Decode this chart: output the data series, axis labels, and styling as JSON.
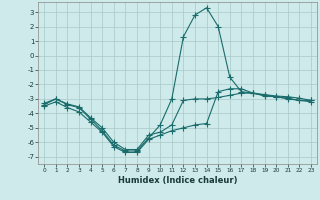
{
  "xlabel": "Humidex (Indice chaleur)",
  "background_color": "#ceeaea",
  "grid_color": "#aac8c8",
  "line_color": "#1a6b6b",
  "xlim": [
    -0.5,
    23.5
  ],
  "ylim": [
    -7.5,
    3.7
  ],
  "xticks": [
    0,
    1,
    2,
    3,
    4,
    5,
    6,
    7,
    8,
    9,
    10,
    11,
    12,
    13,
    14,
    15,
    16,
    17,
    18,
    19,
    20,
    21,
    22,
    23
  ],
  "yticks": [
    -7,
    -6,
    -5,
    -4,
    -3,
    -2,
    -1,
    0,
    1,
    2,
    3
  ],
  "lines": [
    {
      "x": [
        0,
        1,
        2,
        3,
        4,
        5,
        6,
        7,
        8,
        9,
        10,
        11,
        12,
        13,
        14,
        15,
        16,
        17,
        18,
        19,
        20,
        21,
        22,
        23
      ],
      "y": [
        -3.3,
        -3.0,
        -3.4,
        -3.6,
        -4.4,
        -5.2,
        -6.2,
        -6.6,
        -6.6,
        -5.7,
        -4.8,
        -3.0,
        1.3,
        2.8,
        3.3,
        2.0,
        -1.5,
        -2.5,
        -2.6,
        -2.8,
        -2.85,
        -3.0,
        -3.1,
        -3.1
      ]
    },
    {
      "x": [
        0,
        1,
        2,
        3,
        4,
        5,
        6,
        7,
        8,
        9,
        10,
        11,
        12,
        13,
        14,
        15,
        16,
        17,
        18,
        19,
        20,
        21,
        22,
        23
      ],
      "y": [
        -3.4,
        -3.0,
        -3.35,
        -3.55,
        -4.3,
        -5.0,
        -6.0,
        -6.5,
        -6.5,
        -5.5,
        -5.3,
        -4.8,
        -3.1,
        -3.0,
        -3.0,
        -2.9,
        -2.75,
        -2.6,
        -2.6,
        -2.7,
        -2.8,
        -2.85,
        -2.95,
        -3.1
      ]
    },
    {
      "x": [
        0,
        1,
        2,
        3,
        4,
        5,
        6,
        7,
        8,
        9,
        10,
        11,
        12,
        13,
        14,
        15,
        16,
        17,
        18,
        19,
        20,
        21,
        22,
        23
      ],
      "y": [
        -3.5,
        -3.2,
        -3.6,
        -3.9,
        -4.6,
        -5.3,
        -6.3,
        -6.7,
        -6.7,
        -5.8,
        -5.5,
        -5.2,
        -5.0,
        -4.8,
        -4.7,
        -2.5,
        -2.3,
        -2.3,
        -2.6,
        -2.75,
        -2.85,
        -2.95,
        -3.1,
        -3.2
      ]
    }
  ]
}
